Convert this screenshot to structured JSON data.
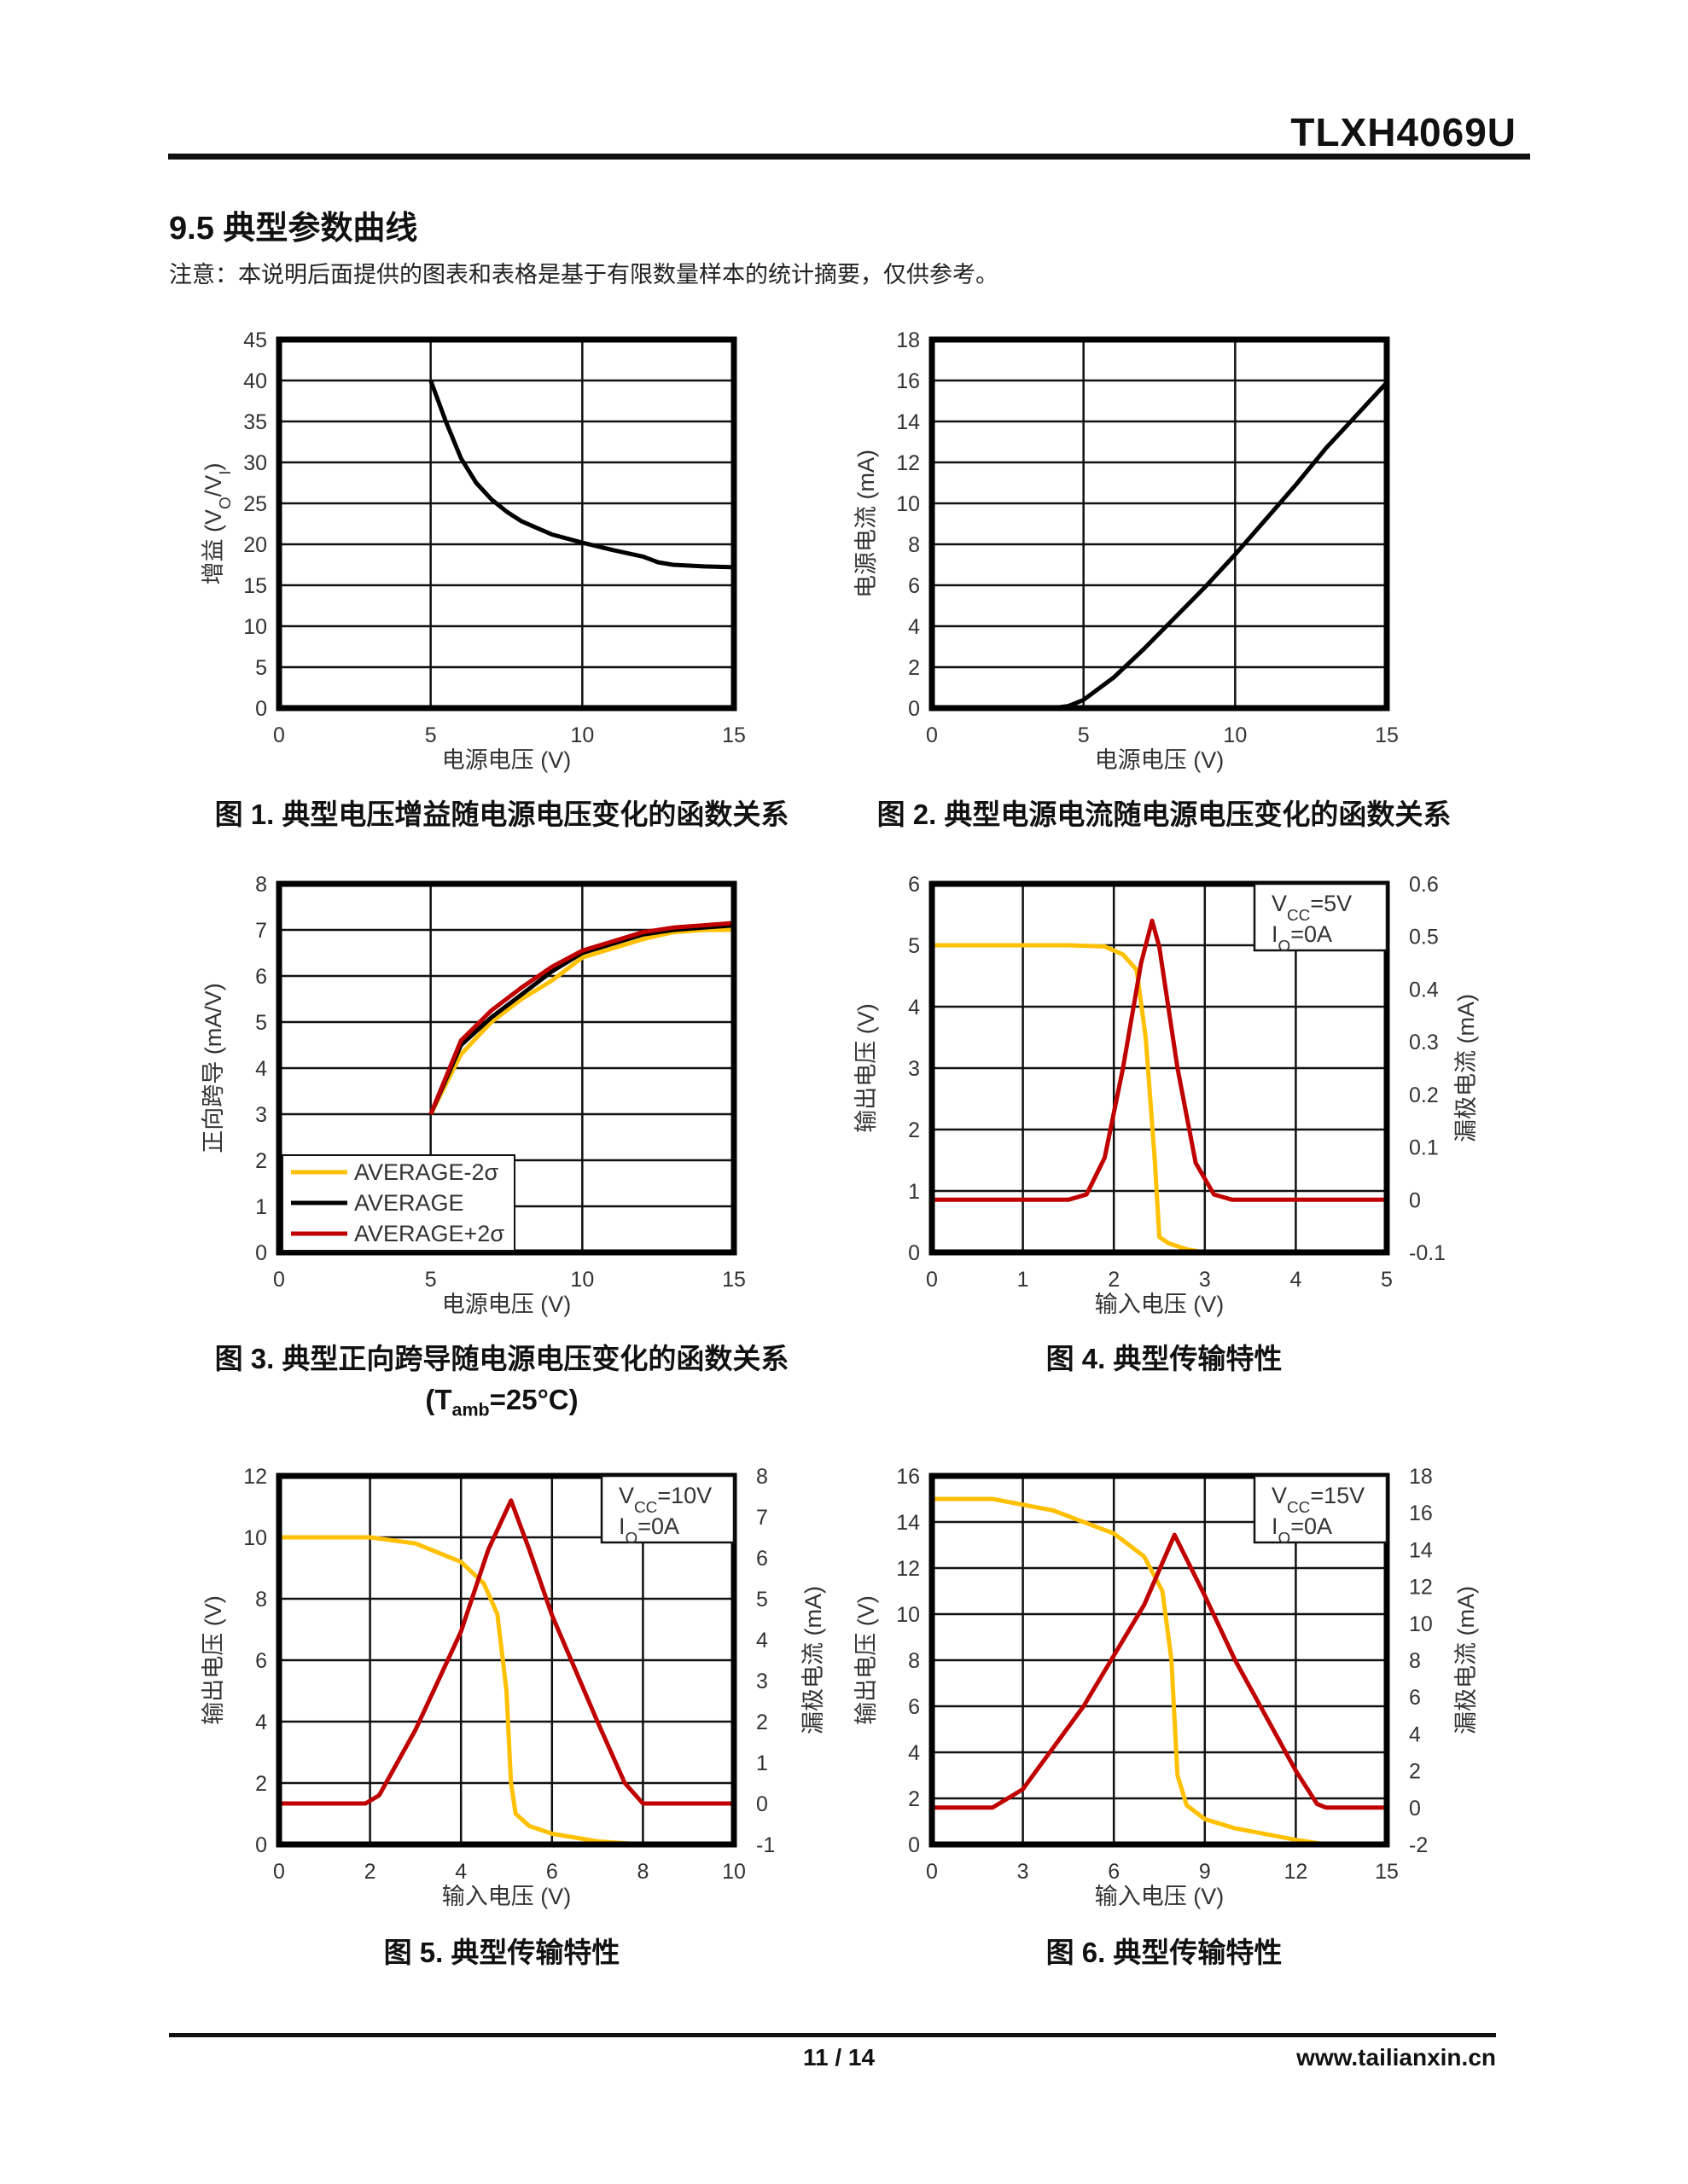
{
  "header": {
    "title": "TLXH4069U"
  },
  "section": {
    "title": "9.5 典型参数曲线",
    "note": "注意：本说明后面提供的图表和表格是基于有限数量样本的统计摘要，仅供参考。"
  },
  "captions": {
    "fig1": "图 1. 典型电压增益随电源电压变化的函数关系",
    "fig2": "图 2. 典型电源电流随电源电压变化的函数关系",
    "fig3": "图 3. 典型正向跨导随电源电压变化的函数关系",
    "fig3_cond_pre": "(T",
    "fig3_cond_sub": "amb",
    "fig3_cond_post": "=25°C)",
    "fig4": "图 4. 典型传输特性",
    "fig5": "图 5. 典型传输特性",
    "fig6": "图 6. 典型传输特性"
  },
  "footer": {
    "page": "11 / 14",
    "site": "www.tailianxin.cn"
  },
  "colors": {
    "black": "#000000",
    "yellow": "#FFC000",
    "red": "#C00000"
  },
  "chart_data": [
    {
      "type": "line",
      "xlabel": [
        {
          "t": "电源电压 (V)"
        }
      ],
      "ylabel": [
        {
          "t": "增益 (V"
        },
        {
          "t": "O",
          "sub": true
        },
        {
          "t": "/V"
        },
        {
          "t": "I",
          "sub": true
        },
        {
          "t": ")"
        }
      ],
      "xlim": [
        0,
        15
      ],
      "xticks": [
        0,
        5,
        10,
        15
      ],
      "ylim": [
        0,
        45
      ],
      "yticks": [
        0,
        5,
        10,
        15,
        20,
        25,
        30,
        35,
        40,
        45
      ],
      "grid": true,
      "series": [
        {
          "name": "gain",
          "color": "#000000",
          "axis": "left",
          "x": [
            5,
            5.5,
            6,
            6.5,
            7,
            7.5,
            8,
            8.5,
            9,
            10,
            11,
            12,
            12.5,
            13,
            14,
            15
          ],
          "y": [
            40,
            35,
            30.5,
            27.5,
            25.5,
            24,
            22.8,
            22,
            21.2,
            20.2,
            19.3,
            18.5,
            17.8,
            17.5,
            17.3,
            17.2
          ]
        }
      ]
    },
    {
      "type": "line",
      "xlabel": [
        {
          "t": "电源电压 (V)"
        }
      ],
      "ylabel": [
        {
          "t": "电源电流 (mA)"
        }
      ],
      "xlim": [
        0,
        15
      ],
      "xticks": [
        0,
        5,
        10,
        15
      ],
      "ylim": [
        0,
        18
      ],
      "yticks": [
        0,
        2,
        4,
        6,
        8,
        10,
        12,
        14,
        16,
        18
      ],
      "grid": true,
      "series": [
        {
          "name": "supply-current",
          "color": "#000000",
          "axis": "left",
          "x": [
            0,
            4,
            4.5,
            5,
            6,
            7,
            8,
            9,
            10,
            11,
            12,
            13,
            14,
            15
          ],
          "y": [
            0,
            0,
            0.1,
            0.4,
            1.5,
            2.9,
            4.4,
            5.9,
            7.5,
            9.2,
            10.9,
            12.7,
            14.3,
            15.9
          ]
        }
      ]
    },
    {
      "type": "line",
      "xlabel": [
        {
          "t": "电源电压 (V)"
        }
      ],
      "ylabel": [
        {
          "t": "正向跨导 (mA/V)"
        }
      ],
      "xlim": [
        0,
        15
      ],
      "xticks": [
        0,
        5,
        10,
        15
      ],
      "ylim": [
        0,
        8
      ],
      "yticks": [
        0,
        1,
        2,
        3,
        4,
        5,
        6,
        7,
        8
      ],
      "grid": true,
      "legend": "bottom-left",
      "series": [
        {
          "name": "AVERAGE-2σ",
          "color": "#FFC000",
          "axis": "left",
          "x": [
            5,
            6,
            7,
            8,
            9,
            10,
            11,
            12,
            13,
            14,
            15
          ],
          "y": [
            3,
            4.3,
            5.0,
            5.5,
            5.9,
            6.4,
            6.6,
            6.8,
            6.95,
            7.0,
            7.0
          ]
        },
        {
          "name": "AVERAGE",
          "color": "#000000",
          "axis": "left",
          "x": [
            5,
            6,
            7,
            8,
            9,
            10,
            11,
            12,
            13,
            14,
            15
          ],
          "y": [
            3,
            4.5,
            5.1,
            5.6,
            6.1,
            6.5,
            6.7,
            6.9,
            7.0,
            7.05,
            7.1
          ]
        },
        {
          "name": "AVERAGE+2σ",
          "color": "#C00000",
          "axis": "left",
          "x": [
            5,
            6,
            7,
            8,
            9,
            10,
            11,
            12,
            13,
            14,
            15
          ],
          "y": [
            3,
            4.6,
            5.25,
            5.75,
            6.2,
            6.55,
            6.75,
            6.95,
            7.05,
            7.1,
            7.15
          ]
        }
      ]
    },
    {
      "type": "line",
      "xlabel": [
        {
          "t": "输入电压 (V)"
        }
      ],
      "ylabel": [
        {
          "t": "输出电压 (V)"
        }
      ],
      "y2label": [
        {
          "t": "漏极电流 (mA)"
        }
      ],
      "xlim": [
        0,
        5
      ],
      "xticks": [
        0,
        1,
        2,
        3,
        4,
        5
      ],
      "ylim": [
        0,
        6
      ],
      "yticks": [
        0,
        1,
        2,
        3,
        4,
        5,
        6
      ],
      "y2lim": [
        -0.1,
        0.6
      ],
      "y2ticks": [
        -0.1,
        0,
        0.1,
        0.2,
        0.3,
        0.4,
        0.5,
        0.6
      ],
      "grid": true,
      "infobox": [
        [
          {
            "t": "V"
          },
          {
            "t": "CC",
            "sub": true
          },
          {
            "t": "=5V"
          }
        ],
        [
          {
            "t": "I"
          },
          {
            "t": "O",
            "sub": true
          },
          {
            "t": "=0A"
          }
        ]
      ],
      "series": [
        {
          "name": "output-voltage",
          "color": "#FFC000",
          "axis": "left",
          "x": [
            0,
            1.5,
            1.9,
            2.1,
            2.25,
            2.35,
            2.45,
            2.5,
            2.6,
            2.8,
            3,
            5
          ],
          "y": [
            5,
            5,
            4.98,
            4.85,
            4.6,
            3.5,
            1.5,
            0.25,
            0.15,
            0.05,
            0,
            0
          ]
        },
        {
          "name": "drain-current",
          "color": "#C00000",
          "axis": "right",
          "x": [
            0,
            1.5,
            1.7,
            1.9,
            2.1,
            2.3,
            2.42,
            2.5,
            2.7,
            2.9,
            3.1,
            3.3,
            5
          ],
          "y": [
            0,
            0,
            0.01,
            0.08,
            0.25,
            0.45,
            0.53,
            0.48,
            0.25,
            0.07,
            0.01,
            0,
            0
          ]
        }
      ]
    },
    {
      "type": "line",
      "xlabel": [
        {
          "t": "输入电压 (V)"
        }
      ],
      "ylabel": [
        {
          "t": "输出电压 (V)"
        }
      ],
      "y2label": [
        {
          "t": "漏极电流 (mA)"
        }
      ],
      "xlim": [
        0,
        10
      ],
      "xticks": [
        0,
        2,
        4,
        6,
        8,
        10
      ],
      "ylim": [
        0,
        12
      ],
      "yticks": [
        0,
        2,
        4,
        6,
        8,
        10,
        12
      ],
      "y2lim": [
        -1,
        8
      ],
      "y2ticks": [
        -1,
        0,
        1,
        2,
        3,
        4,
        5,
        6,
        7,
        8
      ],
      "grid": true,
      "infobox": [
        [
          {
            "t": "V"
          },
          {
            "t": "CC",
            "sub": true
          },
          {
            "t": "=10V"
          }
        ],
        [
          {
            "t": "I"
          },
          {
            "t": "O",
            "sub": true
          },
          {
            "t": "=0A"
          }
        ]
      ],
      "series": [
        {
          "name": "output-voltage",
          "color": "#FFC000",
          "axis": "left",
          "x": [
            0,
            2,
            3,
            4,
            4.5,
            4.8,
            5,
            5.1,
            5.2,
            5.5,
            6,
            7,
            8,
            10
          ],
          "y": [
            10,
            10,
            9.8,
            9.2,
            8.5,
            7.5,
            5,
            2,
            1,
            0.6,
            0.35,
            0.1,
            0,
            0
          ]
        },
        {
          "name": "drain-current",
          "color": "#C00000",
          "axis": "right",
          "x": [
            0,
            1.9,
            2.2,
            3,
            4,
            4.6,
            5.1,
            5.5,
            6,
            7,
            7.6,
            8,
            10
          ],
          "y": [
            0,
            0,
            0.2,
            1.8,
            4.2,
            6.2,
            7.4,
            6.2,
            4.6,
            2,
            0.5,
            0,
            0
          ]
        }
      ]
    },
    {
      "type": "line",
      "xlabel": [
        {
          "t": "输入电压 (V)"
        }
      ],
      "ylabel": [
        {
          "t": "输出电压 (V)"
        }
      ],
      "y2label": [
        {
          "t": "漏极电流 (mA)"
        }
      ],
      "xlim": [
        0,
        15
      ],
      "xticks": [
        0,
        3,
        6,
        9,
        12,
        15
      ],
      "ylim": [
        0,
        16
      ],
      "yticks": [
        0,
        2,
        4,
        6,
        8,
        10,
        12,
        14,
        16
      ],
      "y2lim": [
        -2,
        18
      ],
      "y2ticks": [
        -2,
        0,
        2,
        4,
        6,
        8,
        10,
        12,
        14,
        16,
        18
      ],
      "grid": true,
      "infobox": [
        [
          {
            "t": "V"
          },
          {
            "t": "CC",
            "sub": true
          },
          {
            "t": "=15V"
          }
        ],
        [
          {
            "t": "I"
          },
          {
            "t": "O",
            "sub": true
          },
          {
            "t": "=0A"
          }
        ]
      ],
      "series": [
        {
          "name": "output-voltage",
          "color": "#FFC000",
          "axis": "left",
          "x": [
            0,
            2,
            4,
            6,
            7,
            7.6,
            7.9,
            8.1,
            8.4,
            9,
            10,
            12,
            13,
            15
          ],
          "y": [
            15,
            15,
            14.5,
            13.5,
            12.5,
            11,
            8,
            3,
            1.7,
            1.1,
            0.7,
            0.2,
            0,
            0
          ]
        },
        {
          "name": "drain-current",
          "color": "#C00000",
          "axis": "right",
          "x": [
            0,
            2,
            3,
            5,
            7,
            8,
            9,
            10,
            11,
            12,
            12.7,
            13,
            15
          ],
          "y": [
            0,
            0,
            1,
            5.5,
            11,
            14.8,
            11.5,
            8,
            5,
            2,
            0.2,
            0,
            0
          ]
        }
      ]
    }
  ]
}
